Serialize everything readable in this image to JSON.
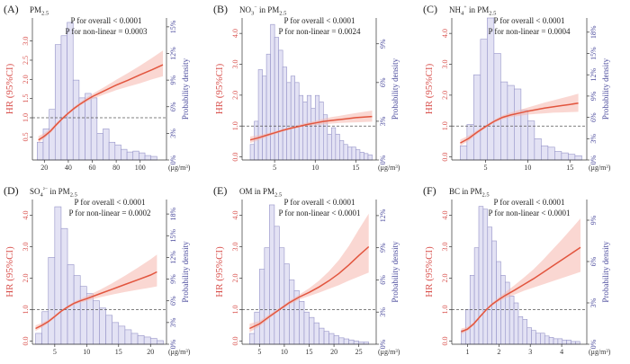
{
  "chart_data": [
    {
      "type": "bar",
      "panel": "(A)",
      "title": "PM2.5",
      "p_overall": "P for overall < 0.0001",
      "p_nonlinear": "P for non-linear = 0.0003",
      "ylabel_left": "HR (95%CI)",
      "ylabel_right": "Probability density",
      "unit": "(μg/m³)",
      "xlim": [
        10,
        122
      ],
      "ylim_hr": [
        -0.1,
        3.6
      ],
      "ylim_density": [
        0,
        0.16
      ],
      "x_ticks": [
        "20",
        "40",
        "60",
        "80",
        "100"
      ],
      "hr_ticks": [
        "0.5",
        "1.0",
        "1.5",
        "2.0",
        "2.5",
        "3.0"
      ],
      "density_ticks": [
        "0%",
        "3%",
        "6%",
        "9%",
        "12%",
        "15%"
      ],
      "bin_start": 14,
      "bin_width": 5,
      "density": [
        0.02,
        0.035,
        0.057,
        0.13,
        0.14,
        0.155,
        0.09,
        0.07,
        0.075,
        0.07,
        0.03,
        0.035,
        0.02,
        0.017,
        0.012,
        0.009,
        0.01,
        0.008,
        0.005,
        0.004
      ],
      "hr_x": [
        15,
        20,
        25,
        30,
        35,
        40,
        45,
        50,
        55,
        60,
        70,
        80,
        90,
        100,
        110,
        119
      ],
      "hr": [
        0.42,
        0.52,
        0.65,
        0.82,
        0.98,
        1.12,
        1.25,
        1.36,
        1.46,
        1.55,
        1.7,
        1.85,
        1.98,
        2.12,
        2.25,
        2.38
      ],
      "hr_lower": [
        0.35,
        0.46,
        0.6,
        0.77,
        0.94,
        1.08,
        1.21,
        1.32,
        1.41,
        1.49,
        1.61,
        1.72,
        1.81,
        1.9,
        2.0,
        2.08
      ],
      "hr_upper": [
        0.52,
        0.6,
        0.71,
        0.87,
        1.02,
        1.16,
        1.29,
        1.41,
        1.52,
        1.62,
        1.8,
        1.99,
        2.17,
        2.36,
        2.56,
        2.75
      ]
    },
    {
      "type": "bar",
      "panel": "(B)",
      "title": "NO3⁻ in PM2.5",
      "p_overall": "P for overall < 0.0001",
      "p_nonlinear": "P for non-linear = 0.0024",
      "ylabel_left": "HR (95%CI)",
      "ylabel_right": "Probability density",
      "unit": "(μg/m³)",
      "xlim": [
        1,
        17.5
      ],
      "ylim_hr": [
        -0.1,
        4.5
      ],
      "ylim_density": [
        0,
        0.11
      ],
      "x_ticks": [
        "5",
        "10",
        "15"
      ],
      "hr_ticks": [
        "0.0",
        "1.0",
        "2.0",
        "3.0",
        "4.0"
      ],
      "density_ticks": [
        "0%",
        "3%",
        "6%",
        "9%"
      ],
      "bin_start": 2,
      "bin_width": 0.5,
      "density": [
        0.012,
        0.03,
        0.07,
        0.065,
        0.082,
        0.105,
        0.095,
        0.085,
        0.072,
        0.06,
        0.065,
        0.06,
        0.05,
        0.045,
        0.05,
        0.04,
        0.05,
        0.045,
        0.035,
        0.02,
        0.025,
        0.02,
        0.015,
        0.012,
        0.01,
        0.01,
        0.008,
        0.006,
        0.005,
        0.004
      ],
      "hr_x": [
        2,
        3,
        4,
        5,
        6,
        7,
        8,
        9,
        10,
        11,
        12,
        13,
        14,
        15,
        16,
        17
      ],
      "hr": [
        0.55,
        0.62,
        0.7,
        0.78,
        0.86,
        0.93,
        0.99,
        1.05,
        1.1,
        1.15,
        1.18,
        1.21,
        1.24,
        1.27,
        1.29,
        1.31
      ],
      "hr_lower": [
        0.45,
        0.54,
        0.64,
        0.73,
        0.82,
        0.89,
        0.95,
        1.0,
        1.03,
        1.06,
        1.08,
        1.1,
        1.11,
        1.12,
        1.13,
        1.14
      ],
      "hr_upper": [
        0.66,
        0.7,
        0.76,
        0.83,
        0.9,
        0.97,
        1.04,
        1.11,
        1.17,
        1.23,
        1.29,
        1.33,
        1.38,
        1.42,
        1.46,
        1.5
      ]
    },
    {
      "type": "bar",
      "panel": "(C)",
      "title": "NH4⁺ in PM2.5",
      "p_overall": "P for overall < 0.0001",
      "p_nonlinear": "P for non-linear = 0.0004",
      "ylabel_left": "HR (95%CI)",
      "ylabel_right": "Probability density",
      "unit": "(μg/m³)",
      "xlim": [
        1,
        17
      ],
      "ylim_hr": [
        -0.1,
        4.5
      ],
      "ylim_density": [
        0,
        0.2
      ],
      "x_ticks": [
        "5",
        "10",
        "15"
      ],
      "hr_ticks": [
        "0.0",
        "1.0",
        "2.0",
        "3.0",
        "4.0"
      ],
      "density_ticks": [
        "0%",
        "3%",
        "6%",
        "9%",
        "12%",
        "15%",
        "18%"
      ],
      "bin_start": 2,
      "bin_width": 0.8,
      "density": [
        0.02,
        0.05,
        0.12,
        0.17,
        0.2,
        0.15,
        0.11,
        0.105,
        0.1,
        0.07,
        0.055,
        0.03,
        0.02,
        0.018,
        0.012,
        0.01,
        0.008,
        0.006
      ],
      "hr_x": [
        2,
        3,
        4,
        5,
        6,
        7,
        8,
        9,
        10,
        11,
        12,
        13,
        14,
        15,
        16
      ],
      "hr": [
        0.45,
        0.6,
        0.8,
        0.98,
        1.15,
        1.28,
        1.36,
        1.42,
        1.48,
        1.53,
        1.58,
        1.62,
        1.66,
        1.7,
        1.74
      ],
      "hr_lower": [
        0.36,
        0.52,
        0.74,
        0.93,
        1.1,
        1.22,
        1.29,
        1.33,
        1.37,
        1.39,
        1.41,
        1.43,
        1.44,
        1.45,
        1.46
      ],
      "hr_upper": [
        0.56,
        0.69,
        0.86,
        1.03,
        1.2,
        1.34,
        1.44,
        1.52,
        1.6,
        1.68,
        1.76,
        1.83,
        1.9,
        1.97,
        2.05
      ]
    },
    {
      "type": "bar",
      "panel": "(D)",
      "title": "SO4²⁻ in PM2.5",
      "p_overall": "P for overall < 0.0001",
      "p_nonlinear": "P for non-linear = 0.0002",
      "ylabel_left": "HR (95%CI)",
      "ylabel_right": "Probability density",
      "unit": "(μg/m³)",
      "xlim": [
        1.5,
        22.5
      ],
      "ylim_hr": [
        -0.1,
        4.5
      ],
      "ylim_density": [
        0,
        0.2
      ],
      "x_ticks": [
        "5",
        "10",
        "15",
        "20"
      ],
      "hr_ticks": [
        "0.0",
        "1.0",
        "2.0",
        "3.0",
        "4.0"
      ],
      "density_ticks": [
        "0%",
        "3%",
        "6%",
        "9%",
        "12%",
        "15%",
        "18%"
      ],
      "bin_start": 2,
      "bin_width": 1,
      "density": [
        0.015,
        0.045,
        0.12,
        0.19,
        0.16,
        0.11,
        0.095,
        0.08,
        0.07,
        0.06,
        0.05,
        0.04,
        0.03,
        0.025,
        0.02,
        0.015,
        0.012,
        0.01,
        0.008,
        0.005
      ],
      "hr_x": [
        2,
        3,
        4,
        5,
        6,
        7,
        8,
        9,
        10,
        12,
        14,
        16,
        18,
        20,
        21
      ],
      "hr": [
        0.4,
        0.5,
        0.62,
        0.78,
        0.95,
        1.08,
        1.2,
        1.28,
        1.35,
        1.5,
        1.65,
        1.8,
        1.95,
        2.1,
        2.2
      ],
      "hr_lower": [
        0.32,
        0.43,
        0.57,
        0.74,
        0.91,
        1.04,
        1.15,
        1.22,
        1.28,
        1.39,
        1.48,
        1.56,
        1.63,
        1.7,
        1.74
      ],
      "hr_upper": [
        0.5,
        0.58,
        0.68,
        0.83,
        0.99,
        1.12,
        1.25,
        1.34,
        1.43,
        1.62,
        1.84,
        2.08,
        2.33,
        2.6,
        2.75
      ]
    },
    {
      "type": "bar",
      "panel": "(E)",
      "title": "OM in PM2.5",
      "p_overall": "P for overall < 0.0001",
      "p_nonlinear": "P for non-linear < 0.0001",
      "ylabel_left": "HR (95%CI)",
      "ylabel_right": "Probability density",
      "unit": "(μg/m³)",
      "xlim": [
        1.5,
        28.5
      ],
      "ylim_hr": [
        -0.1,
        4.5
      ],
      "ylim_density": [
        0,
        0.135
      ],
      "x_ticks": [
        "5",
        "10",
        "15",
        "20",
        "25"
      ],
      "hr_ticks": [
        "0.0",
        "1.0",
        "2.0",
        "3.0",
        "4.0"
      ],
      "density_ticks": [
        "0%",
        "3%",
        "6%",
        "9%",
        "12%"
      ],
      "bin_start": 3,
      "bin_width": 1,
      "density": [
        0.01,
        0.03,
        0.07,
        0.09,
        0.13,
        0.11,
        0.09,
        0.075,
        0.06,
        0.05,
        0.04,
        0.03,
        0.025,
        0.02,
        0.015,
        0.012,
        0.01,
        0.008,
        0.006,
        0.005,
        0.004,
        0.003,
        0.002,
        0.002
      ],
      "hr_x": [
        3,
        5,
        7,
        9,
        11,
        13,
        15,
        17,
        19,
        21,
        23,
        25,
        27
      ],
      "hr": [
        0.4,
        0.55,
        0.78,
        1.0,
        1.22,
        1.4,
        1.55,
        1.72,
        1.92,
        2.15,
        2.42,
        2.72,
        3.0
      ],
      "hr_lower": [
        0.28,
        0.47,
        0.72,
        0.96,
        1.16,
        1.32,
        1.43,
        1.54,
        1.66,
        1.78,
        1.92,
        2.05,
        2.18
      ],
      "hr_upper": [
        0.55,
        0.64,
        0.85,
        1.05,
        1.28,
        1.48,
        1.68,
        1.92,
        2.22,
        2.58,
        3.02,
        3.55,
        4.05
      ]
    },
    {
      "type": "bar",
      "panel": "(F)",
      "title": "BC in PM2.5",
      "p_overall": "P for overall < 0.0001",
      "p_nonlinear": "P for non-linear < 0.0001",
      "ylabel_left": "HR (95%CI)",
      "ylabel_right": "Probability density",
      "unit": "(μg/m³)",
      "xlim": [
        0.5,
        4.8
      ],
      "ylim_hr": [
        -0.1,
        4.5
      ],
      "ylim_density": [
        0,
        0.105
      ],
      "x_ticks": [
        "1",
        "2",
        "3",
        "4"
      ],
      "hr_ticks": [
        "0.0",
        "1.0",
        "2.0",
        "3.0",
        "4.0"
      ],
      "density_ticks": [
        "0%",
        "3%",
        "6%",
        "9%"
      ],
      "bin_start": 0.8,
      "bin_width": 0.14,
      "density": [
        0.01,
        0.025,
        0.05,
        0.07,
        0.1,
        0.098,
        0.085,
        0.075,
        0.06,
        0.05,
        0.045,
        0.035,
        0.03,
        0.02,
        0.018,
        0.012,
        0.01,
        0.008,
        0.008,
        0.006,
        0.005,
        0.004,
        0.004,
        0.003,
        0.003,
        0.002,
        0.002
      ],
      "hr_x": [
        0.8,
        1.0,
        1.2,
        1.4,
        1.6,
        1.8,
        2.0,
        2.2,
        2.5,
        2.8,
        3.1,
        3.4,
        3.7,
        4.0,
        4.3,
        4.6
      ],
      "hr": [
        0.3,
        0.38,
        0.55,
        0.78,
        1.0,
        1.18,
        1.32,
        1.45,
        1.62,
        1.8,
        1.98,
        2.18,
        2.38,
        2.58,
        2.78,
        2.98
      ],
      "hr_lower": [
        0.22,
        0.32,
        0.5,
        0.74,
        0.96,
        1.13,
        1.26,
        1.36,
        1.48,
        1.6,
        1.7,
        1.8,
        1.9,
        2.0,
        2.1,
        2.2
      ],
      "hr_upper": [
        0.4,
        0.45,
        0.6,
        0.82,
        1.04,
        1.23,
        1.39,
        1.55,
        1.78,
        2.02,
        2.28,
        2.58,
        2.9,
        3.22,
        3.56,
        3.9
      ]
    }
  ]
}
